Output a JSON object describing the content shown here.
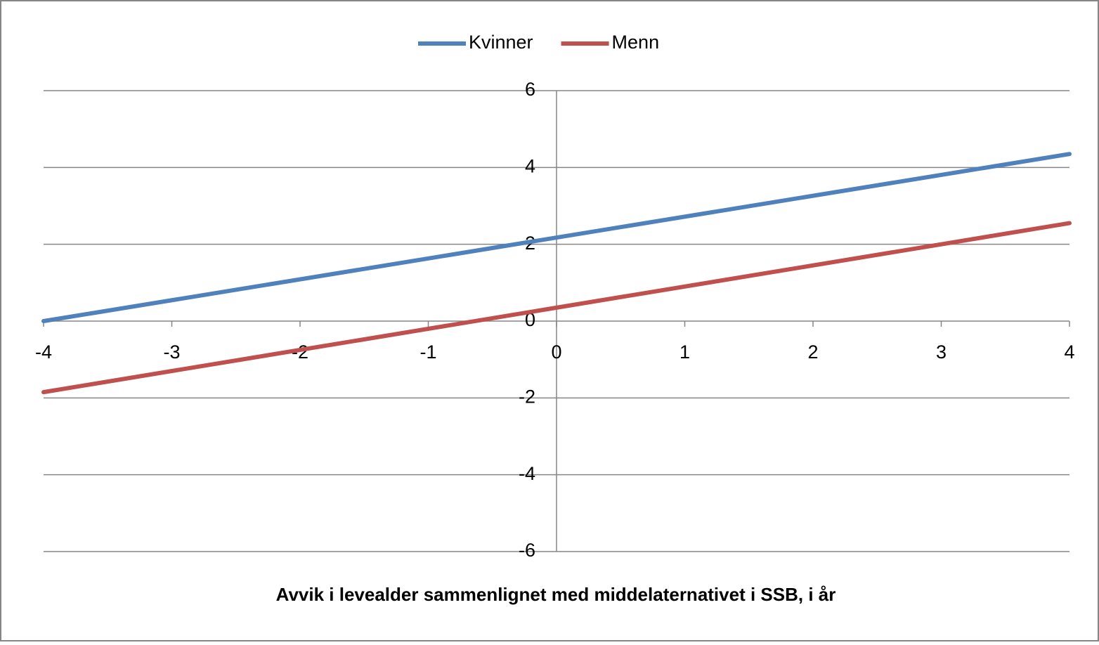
{
  "chart_data": {
    "type": "line",
    "x_label": "Avvik i levealder sammenlignet med middelaternativet  i SSB, i år",
    "x": [
      -4,
      4
    ],
    "series": [
      {
        "name": "Kvinner",
        "color": "#4f81bd",
        "values": [
          0,
          4.35
        ]
      },
      {
        "name": "Menn",
        "color": "#c0504d",
        "values": [
          -1.85,
          2.55
        ]
      }
    ],
    "xlim": [
      -4,
      4
    ],
    "xticks": [
      -4,
      -3,
      -2,
      -1,
      0,
      1,
      2,
      3,
      4
    ],
    "ylim": [
      -6,
      6
    ],
    "yticks": [
      -6,
      -4,
      -2,
      0,
      2,
      4,
      6
    ],
    "grid": true,
    "legend": "top"
  }
}
